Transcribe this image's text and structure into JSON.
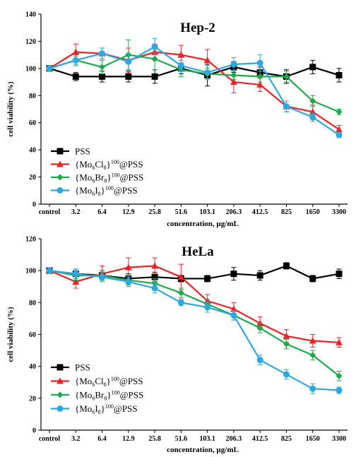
{
  "colors": {
    "PSS": "#000000",
    "Cl": "#e8232a",
    "Br": "#1eaa4b",
    "I": "#2fa8df"
  },
  "chart_data": [
    {
      "type": "line",
      "title": "Hep-2",
      "xlabel": "concentration, µg/mL",
      "ylabel": "cell viability (%)",
      "ylim": [
        0,
        140
      ],
      "yticks": [
        "0",
        "20",
        "40",
        "60",
        "80",
        "100",
        "120",
        "140"
      ],
      "categories": [
        "control",
        "3.2",
        "6.4",
        "12.9",
        "25.8",
        "51.6",
        "103.1",
        "206.3",
        "412.5",
        "825",
        "1650",
        "3300"
      ],
      "grid": false,
      "legend_position": "bottom-left",
      "series": [
        {
          "key": "PSS",
          "name": "PSS",
          "marker": "square",
          "values": [
            100,
            94,
            94,
            94,
            94,
            100,
            95,
            101,
            97,
            94,
            101,
            95
          ],
          "errors": [
            0,
            3,
            4,
            4,
            5,
            4,
            8,
            4,
            4,
            5,
            5,
            5
          ]
        },
        {
          "key": "Cl",
          "name": "{Mo6Cl8}100@PSS",
          "marker": "triangle",
          "values": [
            100,
            112,
            111,
            106,
            112,
            110,
            106,
            90,
            88,
            72,
            68,
            55
          ],
          "errors": [
            0,
            6,
            4,
            9,
            6,
            7,
            8,
            8,
            5,
            4,
            5,
            3
          ]
        },
        {
          "key": "Br",
          "name": "{Mo6Br8}100@PSS",
          "marker": "diamond",
          "values": [
            100,
            106,
            101,
            110,
            107,
            99,
            96,
            95,
            94,
            94,
            76,
            68
          ],
          "errors": [
            0,
            4,
            5,
            11,
            8,
            5,
            4,
            3,
            4,
            4,
            4,
            2
          ]
        },
        {
          "key": "I",
          "name": "{Mo6I8}100@PSS",
          "marker": "circle",
          "values": [
            100,
            106,
            111,
            105,
            116,
            102,
            97,
            103,
            104,
            72,
            64,
            51
          ],
          "errors": [
            0,
            3,
            4,
            6,
            6,
            4,
            5,
            5,
            6,
            4,
            3,
            2
          ]
        }
      ],
      "legend": [
        {
          "key": "PSS",
          "base": "PSS",
          "sub": "",
          "sup": "",
          "tail": ""
        },
        {
          "key": "Cl",
          "base": "{Mo",
          "sub": "6",
          "mid": "Cl",
          "sub2": "8",
          "close": "}",
          "sup": "100",
          "tail": "@PSS"
        },
        {
          "key": "Br",
          "base": "{Mo",
          "sub": "6",
          "mid": "Br",
          "sub2": "8",
          "close": "}",
          "sup": "100",
          "tail": "@PSS"
        },
        {
          "key": "I",
          "base": "{Mo",
          "sub": "6",
          "mid": "I",
          "sub2": "8",
          "close": "}",
          "sup": "100",
          "tail": "@PSS"
        }
      ]
    },
    {
      "type": "line",
      "title": "HeLa",
      "xlabel": "concentration, µg/mL",
      "ylabel": "cell viability (%)",
      "ylim": [
        0,
        120
      ],
      "yticks": [
        "0",
        "20",
        "40",
        "60",
        "80",
        "100",
        "120"
      ],
      "categories": [
        "control",
        "3.2",
        "6.4",
        "12.9",
        "25.8",
        "51.6",
        "103.1",
        "206.3",
        "412.5",
        "825",
        "1650",
        "3300"
      ],
      "grid": false,
      "legend_position": "bottom-left",
      "series": [
        {
          "key": "PSS",
          "name": "PSS",
          "marker": "square",
          "values": [
            100,
            98,
            97,
            95,
            96,
            95,
            95,
            98,
            97,
            103,
            95,
            98
          ],
          "errors": [
            0,
            3,
            3,
            3,
            3,
            2,
            2,
            4,
            3,
            2,
            2,
            3
          ]
        },
        {
          "key": "Cl",
          "name": "{Mo6Cl8}100@PSS",
          "marker": "triangle",
          "values": [
            100,
            93,
            98,
            102,
            103,
            96,
            81,
            76,
            67,
            59,
            56,
            55
          ],
          "errors": [
            0,
            4,
            5,
            6,
            5,
            8,
            4,
            4,
            4,
            4,
            4,
            3
          ]
        },
        {
          "key": "Br",
          "name": "{Mo6Br8}100@PSS",
          "marker": "diamond",
          "values": [
            100,
            97,
            97,
            94,
            92,
            86,
            79,
            72,
            64,
            54,
            47,
            34
          ],
          "errors": [
            0,
            3,
            3,
            3,
            3,
            3,
            3,
            3,
            3,
            3,
            3,
            3
          ]
        },
        {
          "key": "I",
          "name": "{Mo6I8}100@PSS",
          "marker": "circle",
          "values": [
            100,
            98,
            96,
            93,
            89,
            80,
            77,
            72,
            44,
            35,
            26,
            25
          ],
          "errors": [
            0,
            3,
            3,
            3,
            3,
            2,
            3,
            3,
            3,
            3,
            3,
            2
          ]
        }
      ],
      "legend": [
        {
          "key": "PSS",
          "base": "PSS",
          "sub": "",
          "sup": "",
          "tail": ""
        },
        {
          "key": "Cl",
          "base": "{Mo",
          "sub": "6",
          "mid": "Cl",
          "sub2": "8",
          "close": "}",
          "sup": "100",
          "tail": "@PSS"
        },
        {
          "key": "Br",
          "base": "{Mo",
          "sub": "6",
          "mid": "Br",
          "sub2": "8",
          "close": "}",
          "sup": "100",
          "tail": "@PSS"
        },
        {
          "key": "I",
          "base": "{Mo",
          "sub": "6",
          "mid": "I",
          "sub2": "8",
          "close": "}",
          "sup": "100",
          "tail": "@PSS"
        }
      ]
    }
  ]
}
